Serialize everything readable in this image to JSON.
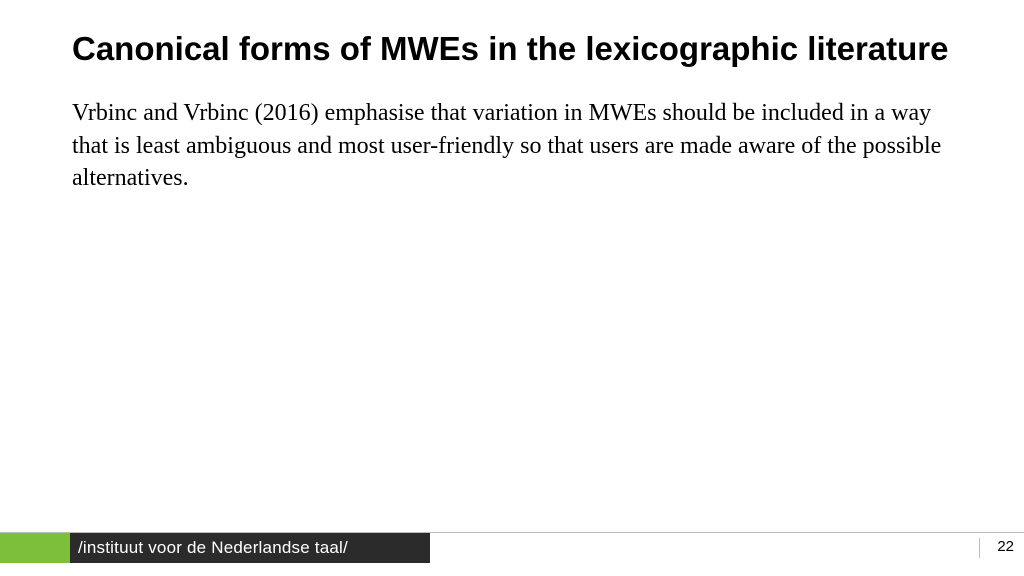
{
  "slide": {
    "title": "Canonical forms of MWEs in the lexicographic literature",
    "body": "Vrbinc and Vrbinc (2016) emphasise that variation in MWEs should be included in a way that is least ambiguous and most user-friendly so that users are made aware of the possible alternatives."
  },
  "footer": {
    "org": "/instituut voor de Nederlandse taal/",
    "page_number": "22"
  },
  "style": {
    "background_color": "#ffffff",
    "title_color": "#000000",
    "title_fontsize": 33,
    "title_fontweight": 700,
    "body_color": "#000000",
    "body_fontsize": 24,
    "body_fontfamily": "Times New Roman",
    "footer_green": "#7bbf3a",
    "footer_dark": "#2b2b2b",
    "footer_text_color": "#ffffff",
    "footer_fontsize": 17,
    "rule_color": "#bdbdbd",
    "page_num_fontsize": 15
  }
}
